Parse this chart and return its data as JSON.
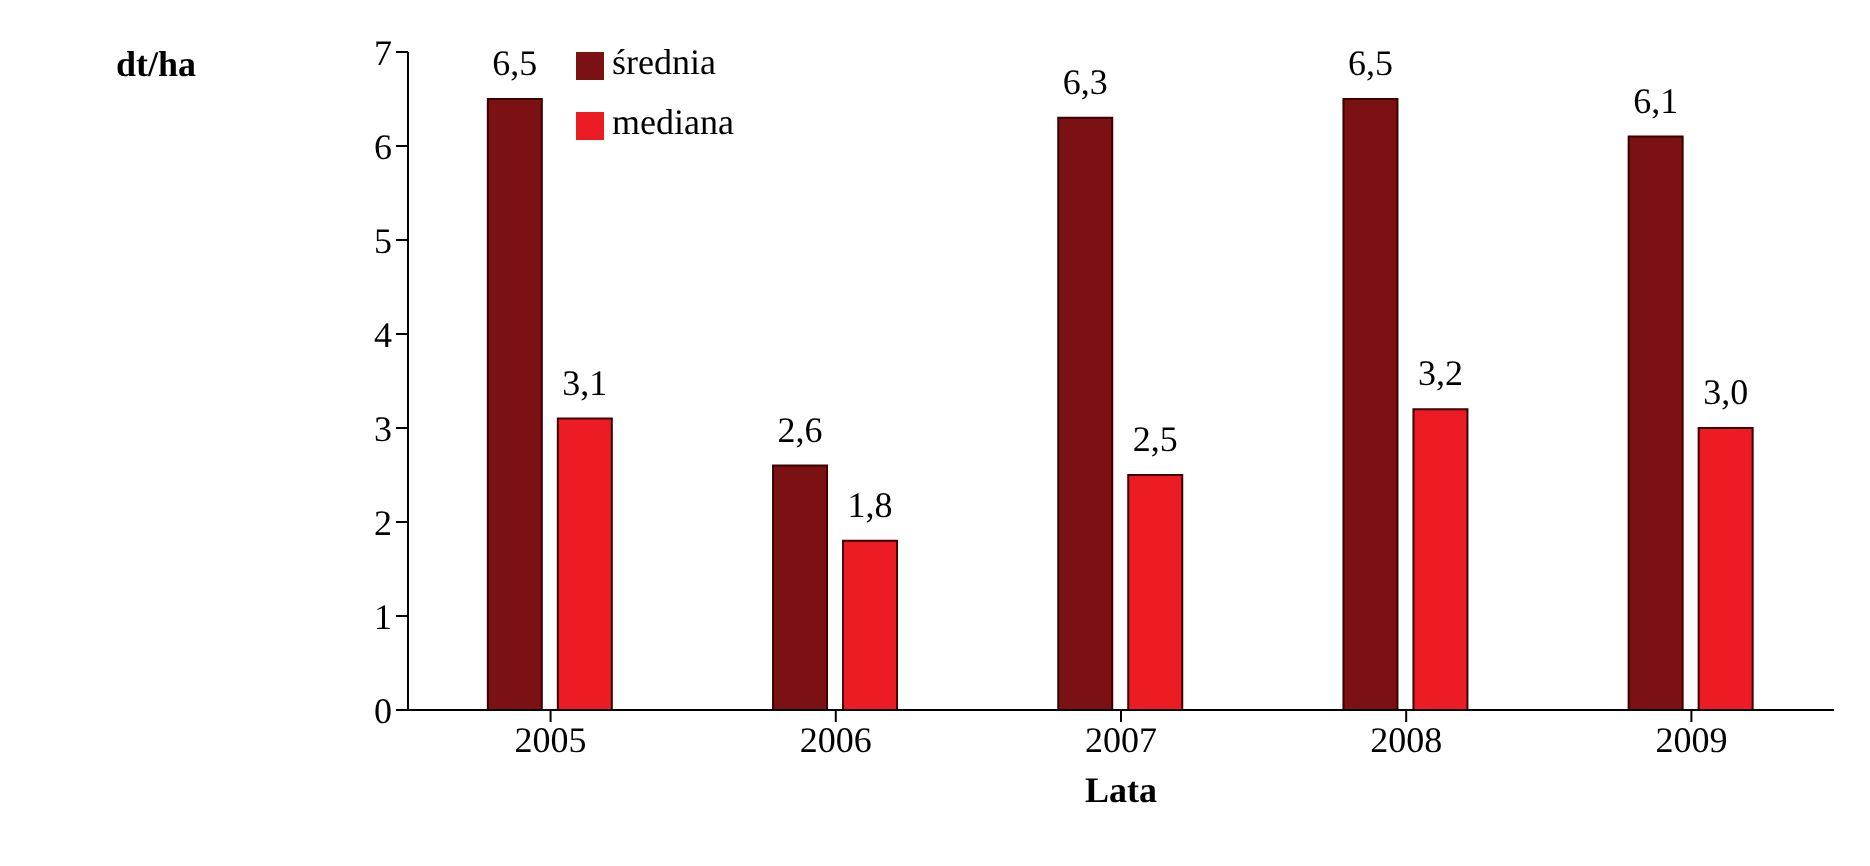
{
  "chart_data": {
    "type": "bar",
    "ylabel": "dt/ha",
    "xlabel": "Lata",
    "categories": [
      "2005",
      "2006",
      "2007",
      "2008",
      "2009"
    ],
    "series": [
      {
        "name": "średnia",
        "color": "#7b1113",
        "values": [
          6.5,
          2.6,
          6.3,
          6.5,
          6.1
        ],
        "value_labels": [
          "6,5",
          "2,6",
          "6,3",
          "6,5",
          "6,1"
        ]
      },
      {
        "name": "mediana",
        "color": "#ed1c24",
        "values": [
          3.1,
          1.8,
          2.5,
          3.2,
          3.0
        ],
        "value_labels": [
          "3,1",
          "1,8",
          "2,5",
          "3,2",
          "3,0"
        ]
      }
    ],
    "ylim": [
      0,
      7
    ],
    "yticks": [
      0,
      1,
      2,
      3,
      4,
      5,
      6,
      7
    ],
    "grid": false,
    "legend": "top left"
  }
}
